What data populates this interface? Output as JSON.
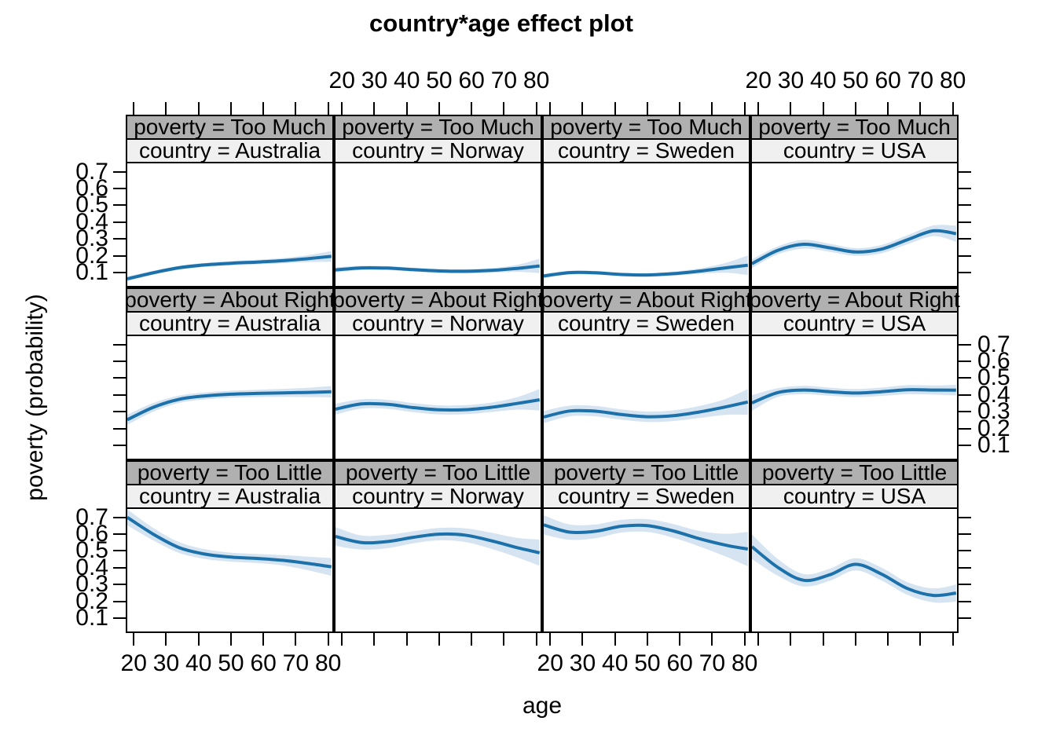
{
  "title": "country*age effect plot",
  "axes": {
    "xlabel": "age",
    "ylabel": "poverty (probability)",
    "x_tick_labels": [
      "20",
      "30",
      "40",
      "50",
      "60",
      "70",
      "80"
    ],
    "y_tick_labels": [
      "0.1",
      "0.2",
      "0.3",
      "0.4",
      "0.5",
      "0.6",
      "0.7"
    ]
  },
  "colors": {
    "line": "#1c71ab",
    "band": "#d6e4f1",
    "strip_poverty_bg": "#b0b0b0",
    "strip_country_bg": "#f0f0f0",
    "border": "#000000"
  },
  "chart_data": {
    "type": "line",
    "title": "country*age effect plot",
    "xlabel": "age",
    "ylabel": "poverty (probability)",
    "grid": false,
    "legend": "none",
    "x_domain": [
      18,
      81.3
    ],
    "y_domain": [
      0.02,
      0.75
    ],
    "x_ticks": [
      20,
      30,
      40,
      50,
      60,
      70,
      80
    ],
    "y_ticks": [
      0.1,
      0.2,
      0.3,
      0.4,
      0.5,
      0.6,
      0.7
    ],
    "rows": [
      "Too Much",
      "About Right",
      "Too Little"
    ],
    "columns": [
      "Australia",
      "Norway",
      "Sweden",
      "USA"
    ],
    "x": [
      18,
      26,
      34,
      42,
      50,
      58,
      66,
      74,
      81
    ],
    "panels": [
      {
        "poverty": "Too Much",
        "country": "Australia",
        "strip1": "poverty = Too Much",
        "strip2": "country = Australia",
        "fit": [
          0.062,
          0.098,
          0.128,
          0.145,
          0.155,
          0.162,
          0.17,
          0.183,
          0.196
        ],
        "lo": [
          0.048,
          0.086,
          0.116,
          0.133,
          0.142,
          0.148,
          0.154,
          0.162,
          0.164
        ],
        "hi": [
          0.076,
          0.11,
          0.14,
          0.157,
          0.168,
          0.176,
          0.186,
          0.204,
          0.228
        ]
      },
      {
        "poverty": "Too Much",
        "country": "Norway",
        "strip1": "poverty = Too Much",
        "strip2": "country = Norway",
        "fit": [
          0.115,
          0.127,
          0.126,
          0.117,
          0.109,
          0.107,
          0.112,
          0.124,
          0.139
        ],
        "lo": [
          0.1,
          0.114,
          0.114,
          0.105,
          0.096,
          0.094,
          0.098,
          0.103,
          0.096
        ],
        "hi": [
          0.13,
          0.14,
          0.138,
          0.129,
          0.122,
          0.12,
          0.126,
          0.145,
          0.182
        ]
      },
      {
        "poverty": "Too Much",
        "country": "Sweden",
        "strip1": "poverty = Too Much",
        "strip2": "country = Sweden",
        "fit": [
          0.079,
          0.099,
          0.098,
          0.088,
          0.085,
          0.093,
          0.108,
          0.127,
          0.143
        ],
        "lo": [
          0.066,
          0.088,
          0.087,
          0.077,
          0.074,
          0.081,
          0.092,
          0.098,
          0.085
        ],
        "hi": [
          0.092,
          0.11,
          0.109,
          0.099,
          0.096,
          0.105,
          0.124,
          0.156,
          0.201
        ]
      },
      {
        "poverty": "Too Much",
        "country": "USA",
        "strip1": "poverty = Too Much",
        "strip2": "country = USA",
        "fit": [
          0.152,
          0.232,
          0.268,
          0.247,
          0.222,
          0.239,
          0.295,
          0.348,
          0.331
        ],
        "lo": [
          0.126,
          0.208,
          0.242,
          0.223,
          0.199,
          0.214,
          0.268,
          0.316,
          0.283
        ],
        "hi": [
          0.178,
          0.256,
          0.294,
          0.271,
          0.245,
          0.264,
          0.322,
          0.38,
          0.379
        ]
      },
      {
        "poverty": "About Right",
        "country": "Australia",
        "strip1": "poverty = About Right",
        "strip2": "country = Australia",
        "fit": [
          0.252,
          0.326,
          0.374,
          0.394,
          0.404,
          0.409,
          0.412,
          0.415,
          0.419
        ],
        "lo": [
          0.222,
          0.3,
          0.352,
          0.373,
          0.383,
          0.387,
          0.388,
          0.387,
          0.385
        ],
        "hi": [
          0.282,
          0.352,
          0.396,
          0.415,
          0.425,
          0.431,
          0.436,
          0.443,
          0.453
        ]
      },
      {
        "poverty": "About Right",
        "country": "Norway",
        "strip1": "poverty = About Right",
        "strip2": "country = Norway",
        "fit": [
          0.315,
          0.346,
          0.344,
          0.324,
          0.311,
          0.312,
          0.326,
          0.349,
          0.371
        ],
        "lo": [
          0.283,
          0.318,
          0.317,
          0.297,
          0.284,
          0.285,
          0.298,
          0.312,
          0.307
        ],
        "hi": [
          0.347,
          0.374,
          0.371,
          0.351,
          0.338,
          0.339,
          0.354,
          0.386,
          0.435
        ]
      },
      {
        "poverty": "About Right",
        "country": "Sweden",
        "strip1": "poverty = About Right",
        "strip2": "country = Sweden",
        "fit": [
          0.268,
          0.304,
          0.303,
          0.283,
          0.27,
          0.276,
          0.298,
          0.328,
          0.358
        ],
        "lo": [
          0.232,
          0.272,
          0.272,
          0.252,
          0.239,
          0.244,
          0.262,
          0.281,
          0.281
        ],
        "hi": [
          0.304,
          0.336,
          0.334,
          0.314,
          0.301,
          0.308,
          0.334,
          0.375,
          0.435
        ]
      },
      {
        "poverty": "About Right",
        "country": "USA",
        "strip1": "poverty = About Right",
        "strip2": "country = USA",
        "fit": [
          0.352,
          0.414,
          0.429,
          0.419,
          0.411,
          0.419,
          0.431,
          0.429,
          0.428
        ],
        "lo": [
          0.306,
          0.388,
          0.404,
          0.395,
          0.387,
          0.394,
          0.404,
          0.402,
          0.396
        ],
        "hi": [
          0.398,
          0.44,
          0.454,
          0.443,
          0.435,
          0.444,
          0.458,
          0.456,
          0.46
        ]
      },
      {
        "poverty": "Too Little",
        "country": "Australia",
        "strip1": "poverty = Too Little",
        "strip2": "country = Australia",
        "fit": [
          0.7,
          0.6,
          0.52,
          0.481,
          0.463,
          0.455,
          0.444,
          0.425,
          0.405
        ],
        "lo": [
          0.652,
          0.563,
          0.488,
          0.452,
          0.436,
          0.428,
          0.413,
          0.384,
          0.352
        ],
        "hi": [
          0.748,
          0.637,
          0.552,
          0.51,
          0.49,
          0.482,
          0.475,
          0.466,
          0.458
        ]
      },
      {
        "poverty": "Too Little",
        "country": "Norway",
        "strip1": "poverty = Too Little",
        "strip2": "country = Norway",
        "fit": [
          0.586,
          0.55,
          0.556,
          0.581,
          0.6,
          0.594,
          0.561,
          0.52,
          0.489
        ],
        "lo": [
          0.53,
          0.508,
          0.516,
          0.545,
          0.563,
          0.553,
          0.513,
          0.462,
          0.411
        ],
        "hi": [
          0.642,
          0.592,
          0.596,
          0.617,
          0.637,
          0.635,
          0.609,
          0.578,
          0.567
        ]
      },
      {
        "poverty": "Too Little",
        "country": "Sweden",
        "strip1": "poverty = Too Little",
        "strip2": "country = Sweden",
        "fit": [
          0.655,
          0.612,
          0.617,
          0.647,
          0.651,
          0.619,
          0.573,
          0.535,
          0.511
        ],
        "lo": [
          0.598,
          0.566,
          0.576,
          0.609,
          0.613,
          0.578,
          0.527,
          0.468,
          0.408
        ],
        "hi": [
          0.712,
          0.658,
          0.658,
          0.685,
          0.689,
          0.66,
          0.619,
          0.602,
          0.614
        ]
      },
      {
        "poverty": "Too Little",
        "country": "USA",
        "strip1": "poverty = Too Little",
        "strip2": "country = USA",
        "fit": [
          0.525,
          0.402,
          0.325,
          0.358,
          0.42,
          0.362,
          0.276,
          0.235,
          0.249
        ],
        "lo": [
          0.452,
          0.352,
          0.288,
          0.322,
          0.384,
          0.324,
          0.238,
          0.193,
          0.198
        ],
        "hi": [
          0.598,
          0.452,
          0.362,
          0.394,
          0.456,
          0.4,
          0.314,
          0.277,
          0.3
        ]
      }
    ]
  }
}
